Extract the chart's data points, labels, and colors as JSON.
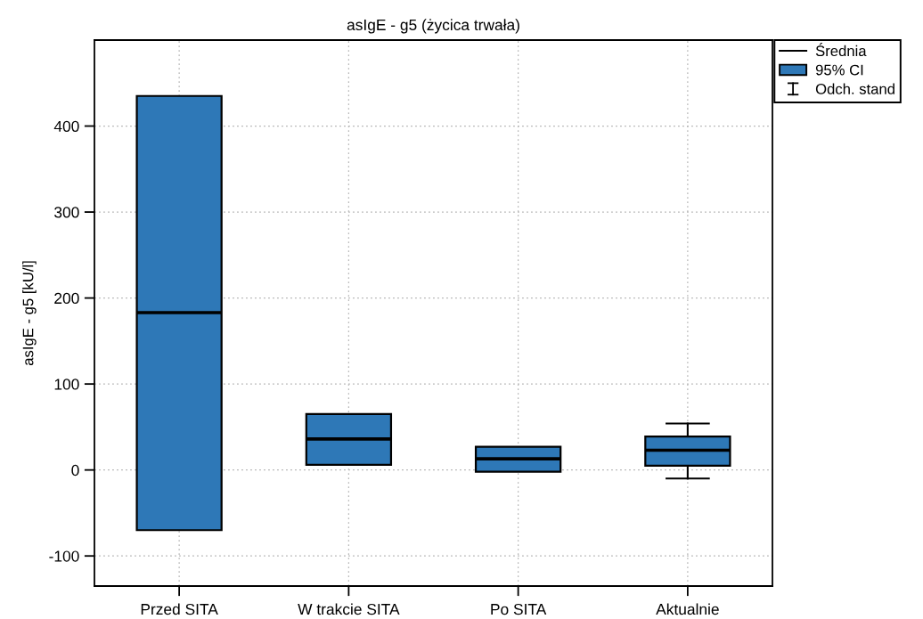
{
  "chart_data": {
    "type": "box",
    "title": "asIgE - g5 (życica trwała)",
    "ylabel": "asIgE - g5 [kU/l]",
    "categories": [
      "Przed SITA",
      "W trakcie SITA",
      "Po SITA",
      "Aktualnie"
    ],
    "series": [
      {
        "name": "95% CI",
        "color": "#2e78b7",
        "boxes": [
          {
            "low": -70,
            "q1": -70,
            "median": 183,
            "q3": 435,
            "high": 435
          },
          {
            "low": 6,
            "q1": 6,
            "median": 36,
            "q3": 65,
            "high": 65
          },
          {
            "low": -2,
            "q1": -2,
            "median": 13,
            "q3": 27,
            "high": 27
          },
          {
            "low": -10,
            "q1": 5,
            "median": 23,
            "q3": 39,
            "high": 54
          }
        ]
      }
    ],
    "annotations": [
      "Średnia",
      "Odch. stand"
    ],
    "ylim": [
      -135,
      500
    ],
    "yticks": [
      -100,
      0,
      100,
      200,
      300,
      400
    ],
    "grid": true,
    "legend": "top right"
  }
}
